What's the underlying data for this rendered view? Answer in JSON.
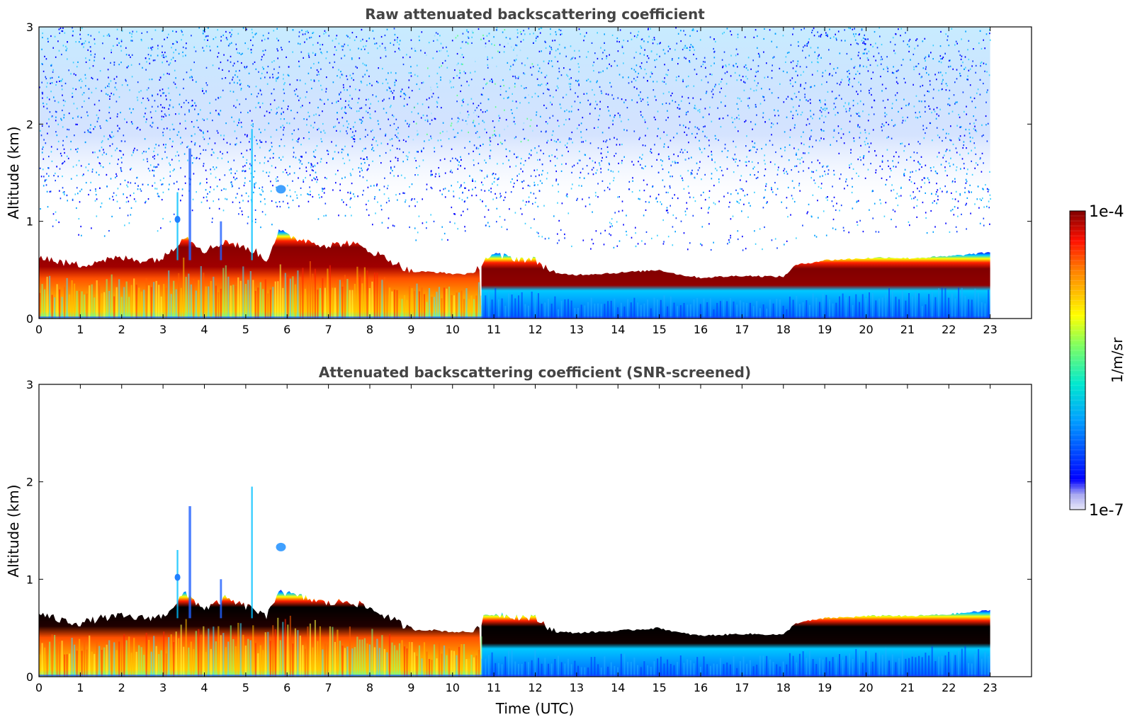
{
  "chart_data": [
    {
      "type": "heatmap",
      "title": "Raw attenuated backscattering coefficient",
      "xlabel": "",
      "ylabel": "Altitude (km)",
      "xlim": [
        0,
        24
      ],
      "ylim": [
        0,
        3
      ],
      "x_ticks": [
        0,
        1,
        2,
        3,
        4,
        5,
        6,
        7,
        8,
        9,
        10,
        11,
        12,
        13,
        14,
        15,
        16,
        17,
        18,
        19,
        20,
        21,
        22,
        23
      ],
      "y_ticks": [
        0,
        1,
        2,
        3
      ],
      "data_end_time": 23,
      "noise_above_boundary_layer": true,
      "boundary_layer_top_km": {
        "x": [
          0,
          0.5,
          1,
          1.5,
          2,
          2.5,
          3,
          3.3,
          3.5,
          3.7,
          4,
          4.3,
          4.5,
          5,
          5.2,
          5.5,
          5.8,
          6,
          6.5,
          7,
          7.5,
          8,
          8.5,
          9,
          9.5,
          10,
          10.5,
          10.8,
          11,
          11.5,
          12,
          12.5,
          13,
          14,
          15,
          15.5,
          16,
          17,
          18,
          18.3,
          19,
          20,
          20.5,
          21,
          22,
          23
        ],
        "values": [
          0.65,
          0.58,
          0.55,
          0.6,
          0.62,
          0.6,
          0.62,
          0.75,
          0.85,
          0.8,
          0.7,
          0.75,
          0.8,
          0.72,
          0.7,
          0.6,
          0.9,
          0.85,
          0.8,
          0.75,
          0.78,
          0.7,
          0.6,
          0.48,
          0.48,
          0.46,
          0.46,
          0.62,
          0.65,
          0.62,
          0.6,
          0.46,
          0.45,
          0.47,
          0.5,
          0.45,
          0.42,
          0.44,
          0.43,
          0.55,
          0.6,
          0.62,
          0.63,
          0.62,
          0.64,
          0.68
        ]
      },
      "colorbar": {
        "min_label": "1e-7",
        "max_label": "1e-4",
        "unit": "1/m/sr",
        "colormap": "jet"
      }
    },
    {
      "type": "heatmap",
      "title": "Attenuated backscattering coefficient (SNR-screened)",
      "xlabel": "Time (UTC)",
      "ylabel": "Altitude (km)",
      "xlim": [
        0,
        24
      ],
      "ylim": [
        0,
        3
      ],
      "x_ticks": [
        0,
        1,
        2,
        3,
        4,
        5,
        6,
        7,
        8,
        9,
        10,
        11,
        12,
        13,
        14,
        15,
        16,
        17,
        18,
        19,
        20,
        21,
        22,
        23
      ],
      "y_ticks": [
        0,
        1,
        2,
        3
      ],
      "data_end_time": 23,
      "noise_above_boundary_layer": false,
      "saturated_values_color": "#000000",
      "boundary_layer_top_km": {
        "x": [
          0,
          0.5,
          1,
          1.5,
          2,
          2.5,
          3,
          3.3,
          3.5,
          3.7,
          4,
          4.3,
          4.5,
          5,
          5.2,
          5.5,
          5.8,
          6,
          6.5,
          7,
          7.5,
          8,
          8.5,
          9,
          9.5,
          10,
          10.5,
          10.8,
          11,
          11.5,
          12,
          12.5,
          13,
          14,
          15,
          15.5,
          16,
          17,
          18,
          18.3,
          19,
          20,
          20.5,
          21,
          22,
          23
        ],
        "values": [
          0.65,
          0.58,
          0.55,
          0.6,
          0.62,
          0.6,
          0.62,
          0.75,
          0.85,
          0.8,
          0.7,
          0.75,
          0.8,
          0.72,
          0.7,
          0.6,
          0.9,
          0.85,
          0.8,
          0.75,
          0.78,
          0.7,
          0.6,
          0.48,
          0.48,
          0.46,
          0.46,
          0.62,
          0.65,
          0.62,
          0.6,
          0.46,
          0.45,
          0.47,
          0.5,
          0.45,
          0.42,
          0.44,
          0.43,
          0.55,
          0.6,
          0.62,
          0.63,
          0.62,
          0.64,
          0.68
        ]
      }
    }
  ]
}
